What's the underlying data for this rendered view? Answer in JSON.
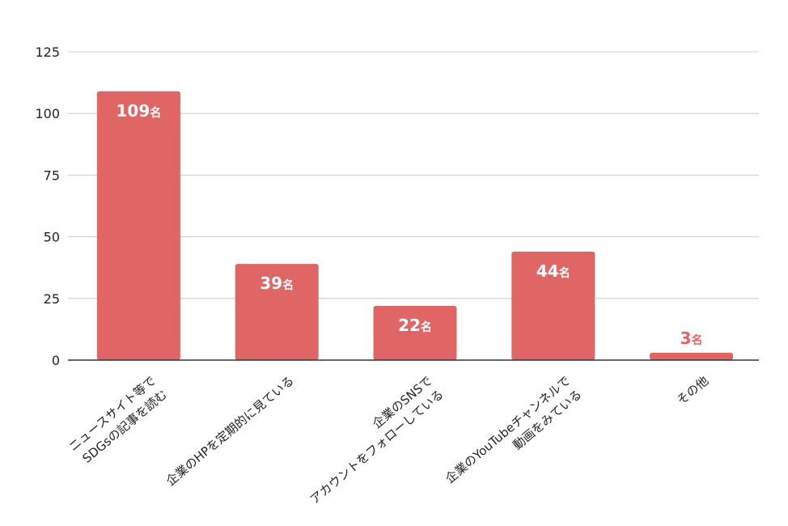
{
  "chart_data": {
    "type": "bar",
    "categories": [
      [
        "ニュースサイト等で",
        "SDGsの記事を読む"
      ],
      [
        "企業のHPを定期的に見ている"
      ],
      [
        "企業のSNSで",
        "アカウントをフォローしている"
      ],
      [
        "企業のYouTubeチャンネルで",
        "動画をみている"
      ],
      [
        "その他"
      ]
    ],
    "values": [
      109,
      39,
      22,
      44,
      3
    ],
    "data_labels": [
      {
        "num": "109",
        "unit": "名"
      },
      {
        "num": "39",
        "unit": "名"
      },
      {
        "num": "22",
        "unit": "名"
      },
      {
        "num": "44",
        "unit": "名"
      },
      {
        "num": "3",
        "unit": "名"
      }
    ],
    "y_ticks": [
      "0",
      "25",
      "50",
      "75",
      "100",
      "125"
    ],
    "ylim": [
      0,
      125
    ],
    "grid": true,
    "bar_color": "#e06666",
    "label_inside_color": "#ffffff",
    "label_outside_color": "#e06666"
  }
}
